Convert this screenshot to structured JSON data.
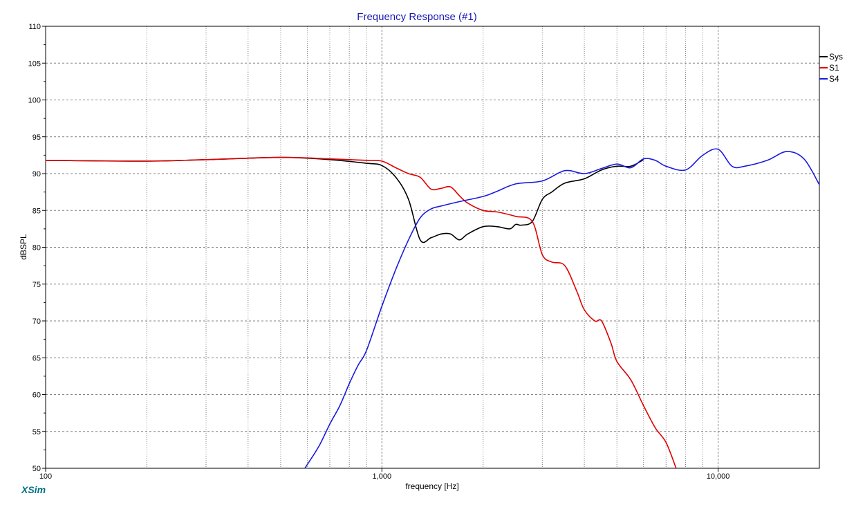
{
  "window": {
    "brand": "XSim"
  },
  "colors": {
    "title": "#1a1ab5",
    "brand": "#006f80",
    "grid": "#808080"
  },
  "chart_data": {
    "type": "line",
    "title": "Frequency Response (#1)",
    "xlabel": "frequency [Hz]",
    "ylabel": "dBSPL",
    "x_scale": "log",
    "xlim": [
      100,
      20000
    ],
    "ylim": [
      50,
      110
    ],
    "x_major_ticks": [
      100,
      1000,
      10000
    ],
    "x_tick_labels": [
      "100",
      "1,000",
      "10,000"
    ],
    "y_ticks": [
      50,
      55,
      60,
      65,
      70,
      75,
      80,
      85,
      90,
      95,
      100,
      105,
      110
    ],
    "y_tick_labels": [
      "50",
      "55",
      "60",
      "65",
      "70",
      "75",
      "80",
      "85",
      "90",
      "95",
      "100",
      "105",
      "110"
    ],
    "grid": true,
    "legend_position": "top-right",
    "series": [
      {
        "name": "Sys",
        "color": "#000000",
        "x": [
          100,
          200,
          300,
          500,
          700,
          900,
          1000,
          1100,
          1200,
          1300,
          1400,
          1500,
          1600,
          1700,
          1800,
          2000,
          2200,
          2400,
          2500,
          2600,
          2800,
          3000,
          3200,
          3500,
          4000,
          4500,
          5000,
          5500,
          6000
        ],
        "y": [
          91.8,
          91.7,
          91.9,
          92.2,
          91.9,
          91.4,
          91.1,
          89.5,
          86.5,
          81.0,
          81.3,
          81.8,
          81.8,
          81.0,
          81.8,
          82.8,
          82.8,
          82.5,
          83.1,
          83.0,
          83.5,
          86.5,
          87.5,
          88.7,
          89.3,
          90.5,
          91.0,
          91.0,
          91.9
        ]
      },
      {
        "name": "S1",
        "color": "#e00000",
        "x": [
          100,
          200,
          300,
          500,
          700,
          900,
          1000,
          1100,
          1200,
          1300,
          1400,
          1500,
          1600,
          1700,
          1800,
          2000,
          2200,
          2500,
          2800,
          3000,
          3200,
          3500,
          3800,
          4000,
          4300,
          4500,
          4800,
          5000,
          5500,
          6000,
          6500,
          7000,
          7500
        ],
        "y": [
          91.8,
          91.7,
          91.9,
          92.2,
          92.0,
          91.8,
          91.7,
          90.8,
          90.0,
          89.5,
          87.9,
          88.0,
          88.2,
          87.0,
          86.0,
          85.0,
          84.8,
          84.2,
          83.5,
          79.0,
          78.0,
          77.5,
          74.0,
          71.5,
          70.0,
          70.0,
          67.0,
          64.5,
          62.0,
          58.5,
          55.5,
          53.5,
          50.0
        ]
      },
      {
        "name": "S4",
        "color": "#1a1ae0",
        "x": [
          590,
          650,
          700,
          750,
          800,
          850,
          900,
          1000,
          1100,
          1200,
          1300,
          1400,
          1500,
          1700,
          2000,
          2200,
          2500,
          3000,
          3500,
          4000,
          4500,
          5000,
          5500,
          6000,
          6500,
          7000,
          8000,
          9000,
          10000,
          11000,
          12000,
          14000,
          16000,
          18000,
          20000
        ],
        "y": [
          50.0,
          53.0,
          56.0,
          58.5,
          61.5,
          64.0,
          66.0,
          72.0,
          77.0,
          81.0,
          84.0,
          85.2,
          85.6,
          86.2,
          86.9,
          87.6,
          88.6,
          89.0,
          90.4,
          90.0,
          90.7,
          91.3,
          90.8,
          92.0,
          91.8,
          91.0,
          90.5,
          92.5,
          93.3,
          91.0,
          91.0,
          91.8,
          93.0,
          92.0,
          88.5
        ]
      }
    ]
  }
}
